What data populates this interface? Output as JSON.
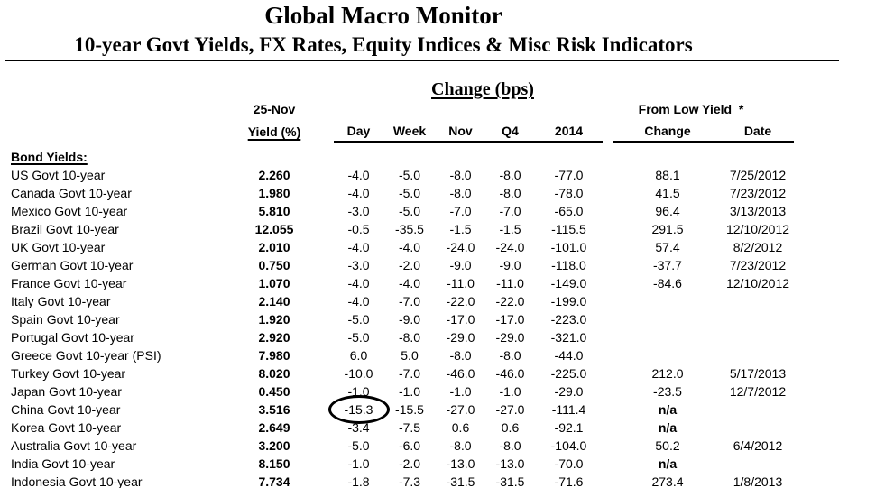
{
  "report": {
    "title": "Global Macro Monitor",
    "subtitle": "10-year Govt Yields, FX Rates, Equity Indices & Misc Risk Indicators"
  },
  "table": {
    "change_group_header": "Change (bps)",
    "from_low_group_header": "From Low Yield  *",
    "yield_header_line1": "25-Nov",
    "yield_header_line2": "Yield (%)",
    "columns": {
      "day": "Day",
      "week": "Week",
      "nov": "Nov",
      "q4": "Q4",
      "y2014": "2014",
      "change": "Change",
      "date": "Date"
    },
    "section_label": "Bond Yields:",
    "annotation": {
      "shape": "ellipse",
      "row": "China Govt 10-year",
      "column": "day",
      "color": "#000000"
    },
    "rows": [
      {
        "label": "US Govt 10-year",
        "yield": "2.260",
        "day": "-4.0",
        "week": "-5.0",
        "nov": "-8.0",
        "q4": "-8.0",
        "y2014": "-77.0",
        "change": "88.1",
        "date": "7/25/2012"
      },
      {
        "label": "Canada Govt 10-year",
        "yield": "1.980",
        "day": "-4.0",
        "week": "-5.0",
        "nov": "-8.0",
        "q4": "-8.0",
        "y2014": "-78.0",
        "change": "41.5",
        "date": "7/23/2012"
      },
      {
        "label": "Mexico Govt 10-year",
        "yield": "5.810",
        "day": "-3.0",
        "week": "-5.0",
        "nov": "-7.0",
        "q4": "-7.0",
        "y2014": "-65.0",
        "change": "96.4",
        "date": "3/13/2013"
      },
      {
        "label": "Brazil Govt 10-year",
        "yield": "12.055",
        "day": "-0.5",
        "week": "-35.5",
        "nov": "-1.5",
        "q4": "-1.5",
        "y2014": "-115.5",
        "change": "291.5",
        "date": "12/10/2012"
      },
      {
        "label": "UK Govt 10-year",
        "yield": "2.010",
        "day": "-4.0",
        "week": "-4.0",
        "nov": "-24.0",
        "q4": "-24.0",
        "y2014": "-101.0",
        "change": "57.4",
        "date": "8/2/2012"
      },
      {
        "label": "German Govt 10-year",
        "yield": "0.750",
        "day": "-3.0",
        "week": "-2.0",
        "nov": "-9.0",
        "q4": "-9.0",
        "y2014": "-118.0",
        "change": "-37.7",
        "date": "7/23/2012"
      },
      {
        "label": "France Govt 10-year",
        "yield": "1.070",
        "day": "-4.0",
        "week": "-4.0",
        "nov": "-11.0",
        "q4": "-11.0",
        "y2014": "-149.0",
        "change": "-84.6",
        "date": "12/10/2012"
      },
      {
        "label": "Italy Govt 10-year",
        "yield": "2.140",
        "day": "-4.0",
        "week": "-7.0",
        "nov": "-22.0",
        "q4": "-22.0",
        "y2014": "-199.0",
        "change": "",
        "date": ""
      },
      {
        "label": "Spain Govt 10-year",
        "yield": "1.920",
        "day": "-5.0",
        "week": "-9.0",
        "nov": "-17.0",
        "q4": "-17.0",
        "y2014": "-223.0",
        "change": "",
        "date": ""
      },
      {
        "label": "Portugal Govt 10-year",
        "yield": "2.920",
        "day": "-5.0",
        "week": "-8.0",
        "nov": "-29.0",
        "q4": "-29.0",
        "y2014": "-321.0",
        "change": "",
        "date": ""
      },
      {
        "label": "Greece Govt 10-year (PSI)",
        "yield": "7.980",
        "day": "6.0",
        "week": "5.0",
        "nov": "-8.0",
        "q4": "-8.0",
        "y2014": "-44.0",
        "change": "",
        "date": ""
      },
      {
        "label": "Turkey Govt 10-year",
        "yield": "8.020",
        "day": "-10.0",
        "week": "-7.0",
        "nov": "-46.0",
        "q4": "-46.0",
        "y2014": "-225.0",
        "change": "212.0",
        "date": "5/17/2013"
      },
      {
        "label": "Japan Govt 10-year",
        "yield": "0.450",
        "day": "-1.0",
        "week": "-1.0",
        "nov": "-1.0",
        "q4": "-1.0",
        "y2014": "-29.0",
        "change": "-23.5",
        "date": "12/7/2012"
      },
      {
        "label": "China Govt 10-year",
        "yield": "3.516",
        "day": "-15.3",
        "week": "-15.5",
        "nov": "-27.0",
        "q4": "-27.0",
        "y2014": "-111.4",
        "change": "n/a",
        "date": "",
        "circled": "day"
      },
      {
        "label": "Korea Govt 10-year",
        "yield": "2.649",
        "day": "-3.4",
        "week": "-7.5",
        "nov": "0.6",
        "q4": "0.6",
        "y2014": "-92.1",
        "change": "n/a",
        "date": ""
      },
      {
        "label": "Australia Govt 10-year",
        "yield": "3.200",
        "day": "-5.0",
        "week": "-6.0",
        "nov": "-8.0",
        "q4": "-8.0",
        "y2014": "-104.0",
        "change": "50.2",
        "date": "6/4/2012"
      },
      {
        "label": "India Govt 10-year",
        "yield": "8.150",
        "day": "-1.0",
        "week": "-2.0",
        "nov": "-13.0",
        "q4": "-13.0",
        "y2014": "-70.0",
        "change": "n/a",
        "date": ""
      },
      {
        "label": "Indonesia Govt 10-year",
        "yield": "7.734",
        "day": "-1.8",
        "week": "-7.3",
        "nov": "-31.5",
        "q4": "-31.5",
        "y2014": "-71.6",
        "change": "273.4",
        "date": "1/8/2013"
      }
    ]
  }
}
